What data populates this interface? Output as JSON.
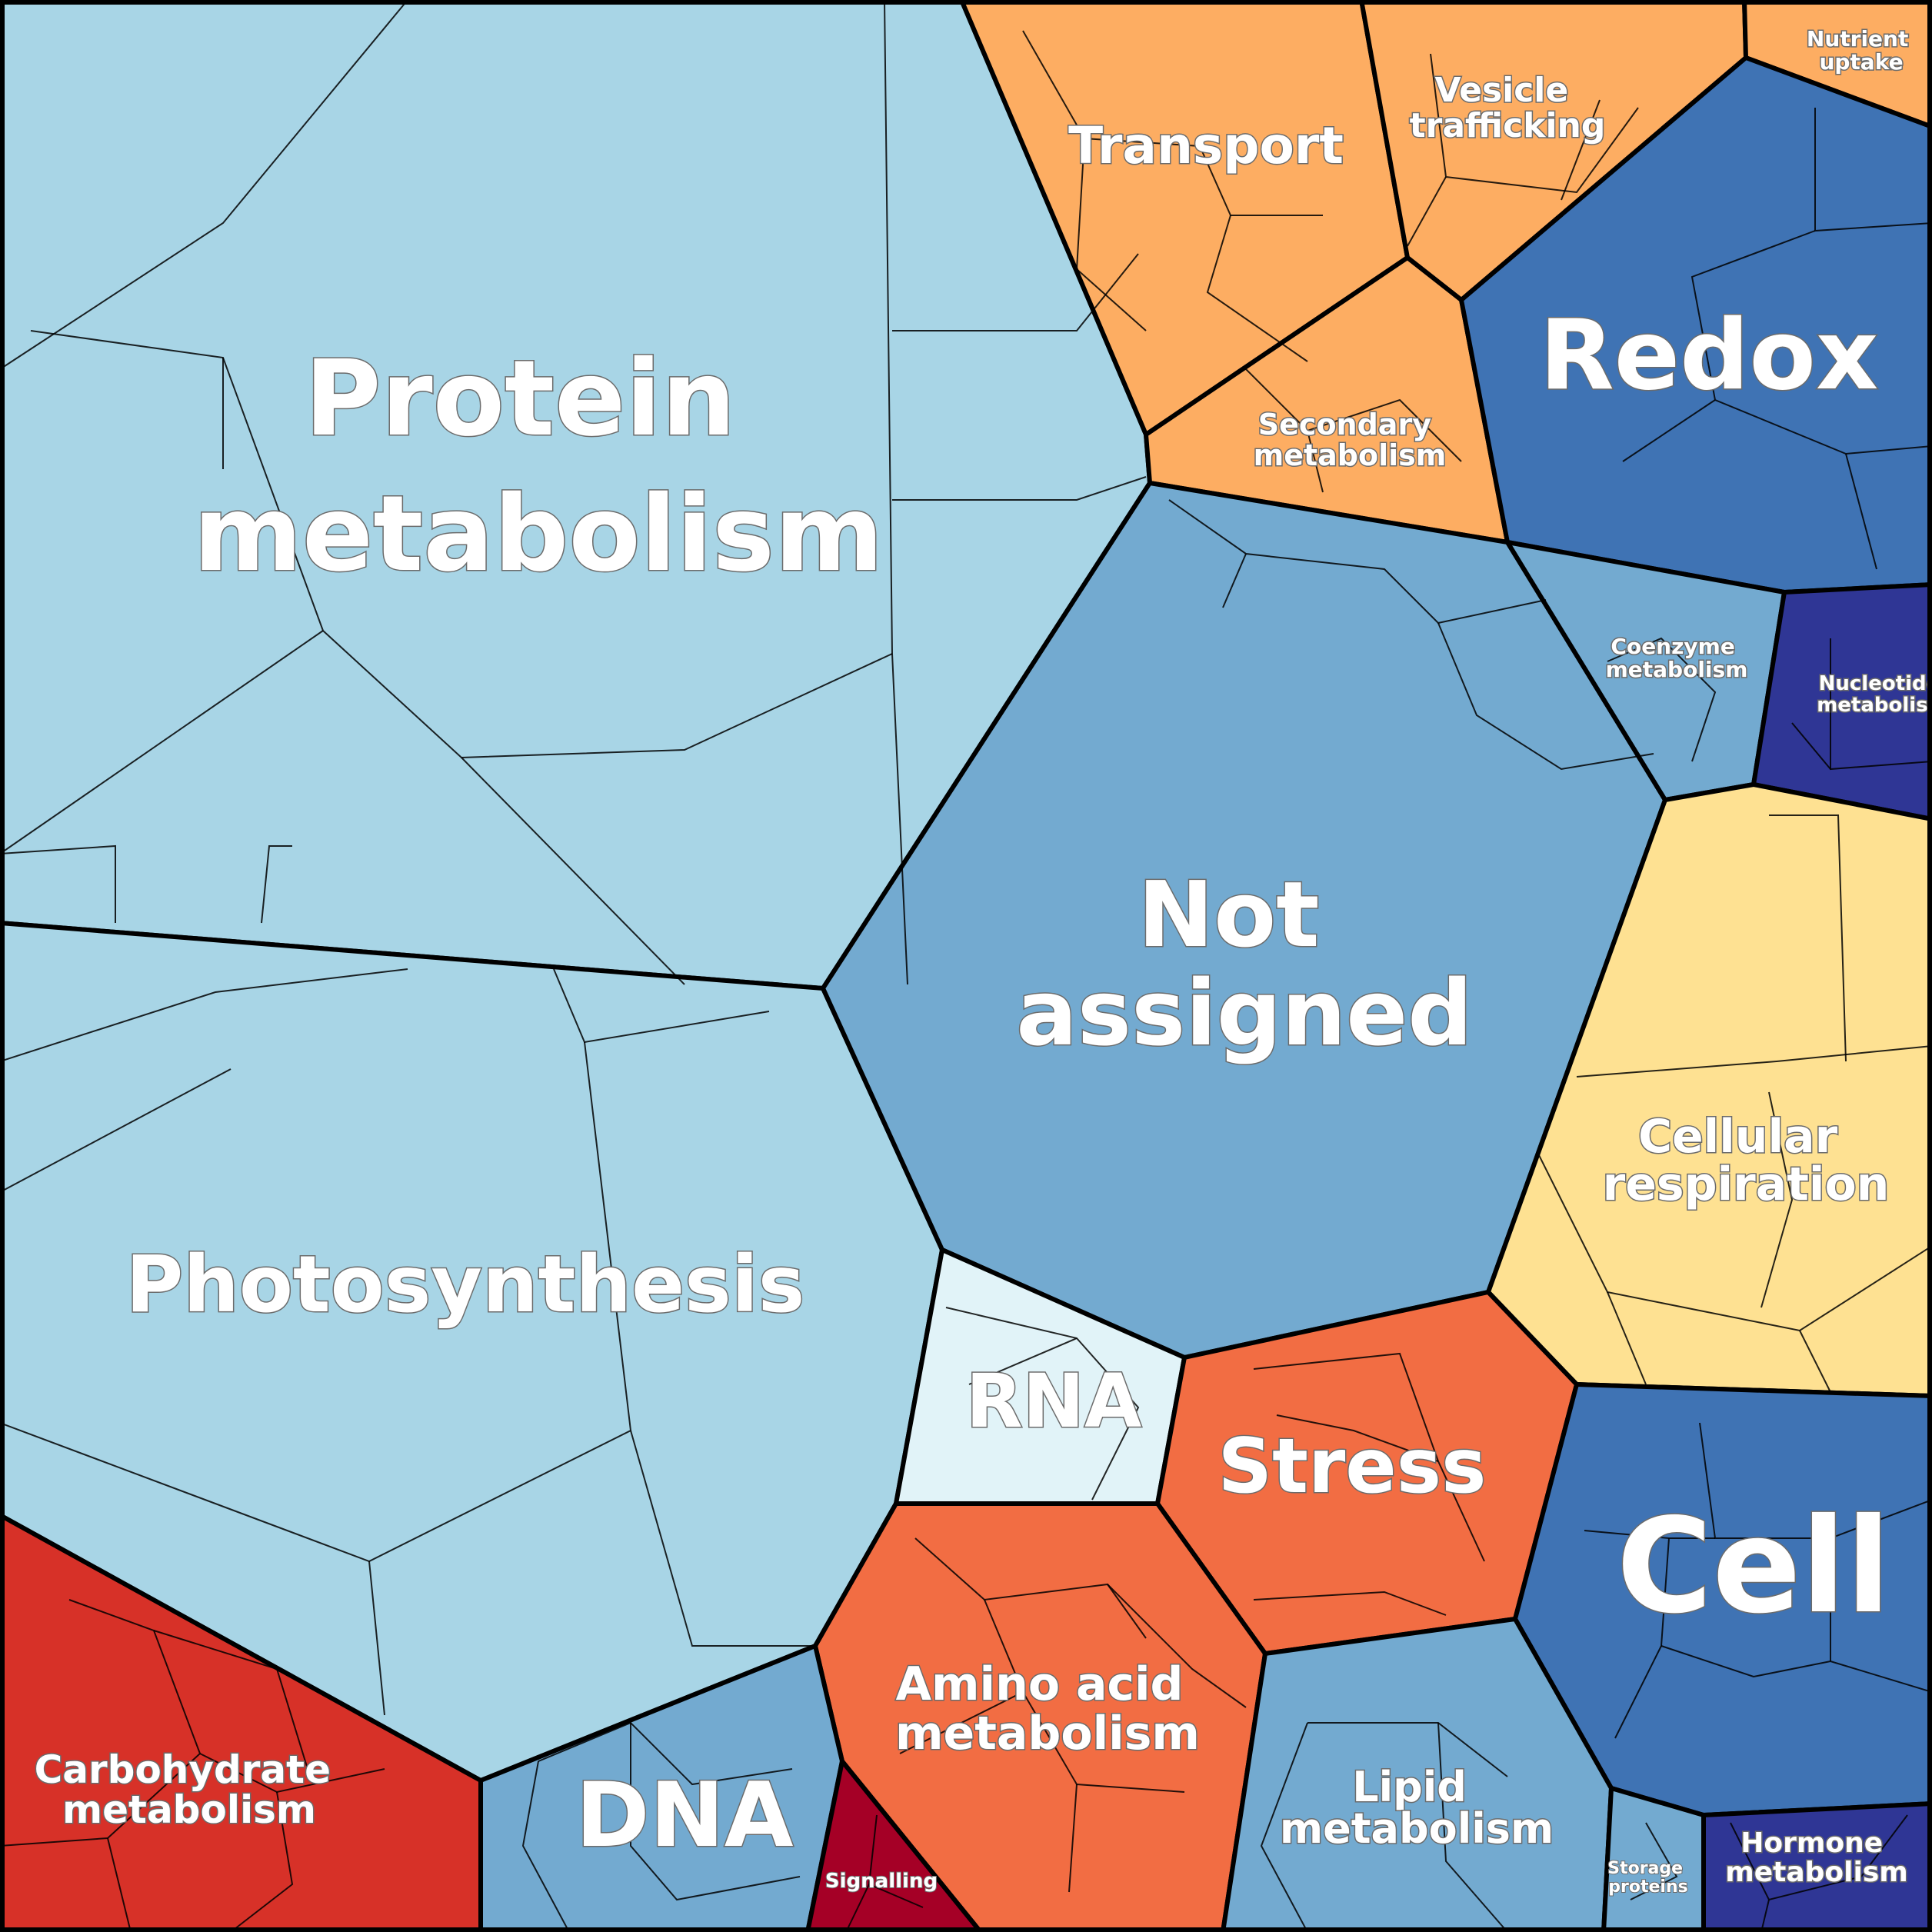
{
  "diagram": {
    "type": "voronoi treemap",
    "categories": [
      {
        "key": "protein",
        "name": "Protein metabolism",
        "lines": [
          "Protein",
          "metabolism"
        ],
        "color": "#a8d5e6"
      },
      {
        "key": "photo",
        "name": "Photosynthesis",
        "lines": [
          "Photosynthesis"
        ],
        "color": "#a8d5e6"
      },
      {
        "key": "transport",
        "name": "Transport",
        "lines": [
          "Transport"
        ],
        "color": "#fdad62"
      },
      {
        "key": "vesicle",
        "name": "Vesicle trafficking",
        "lines": [
          "Vesicle",
          "trafficking"
        ],
        "color": "#fdad62"
      },
      {
        "key": "nutrient",
        "name": "Nutrient uptake",
        "lines": [
          "Nutrient",
          "uptake"
        ],
        "color": "#fdad62"
      },
      {
        "key": "secondary",
        "name": "Secondary metabolism",
        "lines": [
          "Secondary",
          "metabolism"
        ],
        "color": "#fdad62"
      },
      {
        "key": "redox",
        "name": "Redox",
        "lines": [
          "Redox"
        ],
        "color": "#3f73b4"
      },
      {
        "key": "notassigned",
        "name": "Not assigned",
        "lines": [
          "Not",
          "assigned"
        ],
        "color": "#73aad0"
      },
      {
        "key": "coenzyme",
        "name": "Coenzyme metabolism",
        "lines": [
          "Coenzyme",
          "metabolism"
        ],
        "color": "#73aad0"
      },
      {
        "key": "nucleotide",
        "name": "Nucleotide metabolism",
        "lines": [
          "Nucleotide",
          "metabolism"
        ],
        "color": "#2f3695"
      },
      {
        "key": "cellresp",
        "name": "Cellular respiration",
        "lines": [
          "Cellular",
          "respiration"
        ],
        "color": "#fee192"
      },
      {
        "key": "rna",
        "name": "RNA",
        "lines": [
          "RNA"
        ],
        "color": "#e1f3f8"
      },
      {
        "key": "stress",
        "name": "Stress",
        "lines": [
          "Stress"
        ],
        "color": "#f26d43"
      },
      {
        "key": "cell",
        "name": "Cell",
        "lines": [
          "Cell"
        ],
        "color": "#3f73b4"
      },
      {
        "key": "aminoacid",
        "name": "Amino acid metabolism",
        "lines": [
          "Amino acid",
          "metabolism"
        ],
        "color": "#f26d43"
      },
      {
        "key": "lipid",
        "name": "Lipid metabolism",
        "lines": [
          "Lipid",
          "metabolism"
        ],
        "color": "#73aad0"
      },
      {
        "key": "carbo",
        "name": "Carbohydrate metabolism",
        "lines": [
          "Carbohydrate",
          "metabolism"
        ],
        "color": "#d73128"
      },
      {
        "key": "dna",
        "name": "DNA",
        "lines": [
          "DNA"
        ],
        "color": "#73aad0"
      },
      {
        "key": "signalling",
        "name": "Signalling",
        "lines": [
          "Signalling"
        ],
        "color": "#a50026"
      },
      {
        "key": "storage",
        "name": "Storage proteins",
        "lines": [
          "Storage",
          "proteins"
        ],
        "color": "#73aad0"
      },
      {
        "key": "hormone",
        "name": "Hormone metabolism",
        "lines": [
          "Hormone",
          "metabolism"
        ],
        "color": "#2f3695"
      }
    ]
  }
}
